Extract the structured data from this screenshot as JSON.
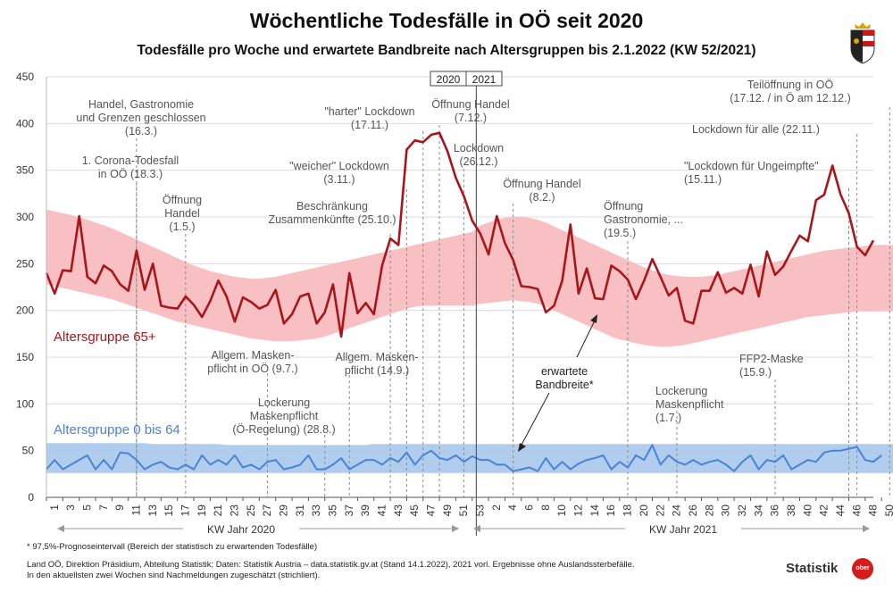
{
  "header": {
    "title": "Wöchentliche Todesfälle in OÖ seit 2020",
    "subtitle": "Todesfälle pro Woche und erwartete Bandbreite nach Altersgruppen bis 2.1.2022 (KW 52/2021)"
  },
  "chart_data": {
    "type": "line",
    "title": "Wöchentliche Todesfälle in OÖ seit 2020",
    "ylim": [
      0,
      450
    ],
    "yticks": [
      0,
      50,
      100,
      150,
      200,
      250,
      300,
      350,
      400,
      450
    ],
    "x_weeks_2020": [
      1,
      2,
      3,
      4,
      5,
      6,
      7,
      8,
      9,
      10,
      11,
      12,
      13,
      14,
      15,
      16,
      17,
      18,
      19,
      20,
      21,
      22,
      23,
      24,
      25,
      26,
      27,
      28,
      29,
      30,
      31,
      32,
      33,
      34,
      35,
      36,
      37,
      38,
      39,
      40,
      41,
      42,
      43,
      44,
      45,
      46,
      47,
      48,
      49,
      50,
      51,
      52,
      53
    ],
    "x_weeks_2021": [
      1,
      2,
      3,
      4,
      5,
      6,
      7,
      8,
      9,
      10,
      11,
      12,
      13,
      14,
      15,
      16,
      17,
      18,
      19,
      20,
      21,
      22,
      23,
      24,
      25,
      26,
      27,
      28,
      29,
      30,
      31,
      32,
      33,
      34,
      35,
      36,
      37,
      38,
      39,
      40,
      41,
      42,
      43,
      44,
      45,
      46,
      47,
      48,
      49,
      50,
      51,
      52
    ],
    "xtick_labels": [
      "1",
      "3",
      "5",
      "7",
      "9",
      "11",
      "13",
      "15",
      "17",
      "19",
      "21",
      "23",
      "25",
      "27",
      "29",
      "31",
      "33",
      "35",
      "37",
      "39",
      "41",
      "43",
      "45",
      "47",
      "49",
      "51",
      "53",
      "2",
      "4",
      "6",
      "8",
      "10",
      "12",
      "14",
      "16",
      "18",
      "20",
      "22",
      "24",
      "26",
      "28",
      "30",
      "32",
      "34",
      "36",
      "38",
      "40",
      "42",
      "44",
      "46",
      "48",
      "50",
      "52"
    ],
    "year_boxes": [
      "2020",
      "2021"
    ],
    "xlabel_2020": "KW Jahr 2020",
    "xlabel_2021": "KW Jahr 2021",
    "series": [
      {
        "name": "Altersgruppe 65+",
        "color": "#a8161b",
        "band_color": "#f8b9bd",
        "band_lower": [
          228,
          226,
          224,
          222,
          220,
          218,
          216,
          214,
          212,
          209,
          206,
          203,
          200,
          197,
          194,
          191,
          188,
          186,
          184,
          182,
          180,
          178,
          176,
          174,
          172,
          170,
          169,
          168,
          167,
          167,
          167,
          168,
          169,
          170,
          172,
          175,
          178,
          181,
          184,
          187,
          190,
          193,
          196,
          199,
          202,
          204,
          205,
          205,
          205,
          205,
          205,
          205,
          205,
          207,
          208,
          209,
          210,
          211,
          210,
          209,
          207,
          204,
          200,
          196,
          192,
          188,
          184,
          180,
          176,
          172,
          169,
          167,
          165,
          163,
          162,
          161,
          161,
          162,
          163,
          165,
          167,
          169,
          171,
          173,
          175,
          177,
          179,
          181,
          183,
          185,
          187,
          189,
          191,
          193,
          194,
          195,
          196,
          197,
          198,
          199,
          199,
          199,
          199,
          199,
          199
        ],
        "band_upper": [
          308,
          306,
          304,
          302,
          300,
          297,
          294,
          291,
          288,
          284,
          280,
          276,
          272,
          268,
          264,
          260,
          256,
          252,
          248,
          245,
          242,
          240,
          238,
          236,
          235,
          234,
          234,
          235,
          236,
          238,
          240,
          242,
          244,
          246,
          248,
          250,
          252,
          254,
          256,
          258,
          260,
          262,
          264,
          266,
          268,
          270,
          272,
          274,
          276,
          278,
          280,
          282,
          284,
          291,
          294,
          297,
          299,
          300,
          300,
          299,
          297,
          294,
          290,
          286,
          282,
          278,
          274,
          270,
          266,
          262,
          258,
          254,
          250,
          246,
          243,
          240,
          238,
          237,
          236,
          236,
          236,
          237,
          238,
          240,
          242,
          244,
          246,
          248,
          250,
          252,
          254,
          256,
          258,
          260,
          262,
          264,
          265,
          266,
          267,
          268,
          269,
          270,
          270,
          270,
          270
        ],
        "values": [
          240,
          218,
          243,
          242,
          301,
          236,
          229,
          248,
          242,
          228,
          221,
          264,
          222,
          250,
          205,
          203,
          202,
          215,
          206,
          193,
          210,
          232,
          215,
          188,
          214,
          209,
          202,
          206,
          222,
          186,
          196,
          215,
          218,
          186,
          198,
          228,
          172,
          240,
          197,
          208,
          196,
          248,
          277,
          270,
          372,
          382,
          380,
          388,
          390,
          370,
          342,
          322,
          296,
          282,
          260,
          301,
          272,
          254,
          226,
          225,
          223,
          198,
          205,
          232,
          292,
          218,
          245,
          213,
          212,
          248,
          242,
          233,
          212,
          232,
          255,
          236,
          216,
          224,
          189,
          186,
          221,
          221,
          241,
          219,
          224,
          218,
          249,
          215,
          263,
          238,
          247,
          264,
          280,
          274,
          318,
          324,
          355,
          324,
          304,
          268,
          259,
          275
        ],
        "estimated_from_index": 103
      },
      {
        "name": "Altersgruppe 0 bis 64",
        "color": "#4a82d6",
        "band_color": "#a9c8ec",
        "band_lower": [
          26,
          26,
          26,
          26,
          26,
          26,
          26,
          26,
          26,
          26,
          26,
          26,
          26,
          26,
          26,
          26,
          26,
          26,
          26,
          26,
          26,
          26,
          26,
          26,
          26,
          26,
          26,
          26,
          26,
          26,
          26,
          26,
          26,
          26,
          26,
          26,
          26,
          26,
          26,
          26,
          26,
          26,
          26,
          26,
          26,
          26,
          26,
          26,
          26,
          26,
          26,
          26,
          26,
          26,
          26,
          26,
          26,
          26,
          26,
          26,
          26,
          26,
          26,
          26,
          26,
          26,
          26,
          26,
          26,
          26,
          26,
          26,
          26,
          26,
          26,
          26,
          26,
          26,
          26,
          26,
          26,
          26,
          26,
          26,
          26,
          26,
          26,
          26,
          26,
          26,
          26,
          26,
          26,
          26,
          26,
          26,
          26,
          26,
          26,
          26,
          26,
          26,
          26,
          26,
          26
        ],
        "band_upper": [
          58,
          58,
          58,
          58,
          58,
          58,
          58,
          58,
          58,
          58,
          58,
          58,
          58,
          57,
          57,
          57,
          57,
          57,
          57,
          57,
          57,
          57,
          56,
          56,
          56,
          56,
          56,
          56,
          56,
          56,
          56,
          56,
          56,
          56,
          56,
          56,
          56,
          56,
          56,
          56,
          57,
          57,
          57,
          57,
          57,
          57,
          57,
          57,
          57,
          57,
          57,
          57,
          57,
          57,
          57,
          57,
          57,
          57,
          57,
          57,
          57,
          57,
          57,
          57,
          57,
          57,
          57,
          57,
          57,
          57,
          57,
          57,
          57,
          57,
          57,
          57,
          57,
          57,
          57,
          57,
          57,
          57,
          57,
          57,
          57,
          57,
          57,
          57,
          57,
          57,
          57,
          57,
          57,
          57,
          57,
          57,
          57,
          57,
          57,
          57,
          57,
          57,
          57,
          57,
          57
        ],
        "values": [
          30,
          40,
          30,
          35,
          40,
          45,
          30,
          40,
          30,
          48,
          47,
          40,
          30,
          35,
          38,
          32,
          30,
          35,
          30,
          45,
          35,
          40,
          35,
          45,
          32,
          35,
          30,
          38,
          40,
          30,
          32,
          35,
          45,
          30,
          30,
          35,
          42,
          30,
          35,
          40,
          40,
          35,
          42,
          38,
          48,
          35,
          45,
          50,
          42,
          40,
          45,
          38,
          44,
          40,
          40,
          35,
          35,
          28,
          30,
          32,
          28,
          42,
          30,
          38,
          30,
          36,
          40,
          42,
          45,
          30,
          38,
          32,
          45,
          40,
          56,
          35,
          45,
          38,
          35,
          40,
          35,
          38,
          40,
          35,
          28,
          38,
          45,
          30,
          40,
          38,
          45,
          30,
          35,
          40,
          38,
          48,
          50,
          50,
          52,
          54,
          40,
          38,
          45
        ],
        "estimated_from_index": 103
      }
    ],
    "legend": [
      "Altersgruppe 65+",
      "Altersgruppe 0 bis 64"
    ],
    "band_label": "erwartete\nBandbreite*"
  },
  "annotations": [
    {
      "lines": [
        "Handel, Gastronomie",
        "und Grenzen geschlossen",
        "(16.3.)"
      ]
    },
    {
      "lines": [
        "1. Corona-Todesfall",
        "in OÖ (18.3.)"
      ]
    },
    {
      "lines": [
        "Öffnung",
        "Handel",
        "(1.5.)"
      ]
    },
    {
      "lines": [
        "Allgem. Masken-",
        "pflicht in OÖ (9.7.)"
      ]
    },
    {
      "lines": [
        "Lockerung",
        "Maskenpflicht",
        "(Ö-Regelung) (28.8.)"
      ]
    },
    {
      "lines": [
        "Allgem. Masken-",
        "pflicht (14.9.)"
      ]
    },
    {
      "lines": [
        "Beschränkung",
        "Zusammenkünfte (25.10.)"
      ]
    },
    {
      "lines": [
        "\"weicher\" Lockdown",
        "(3.11.)"
      ]
    },
    {
      "lines": [
        "\"harter\" Lockdown",
        "(17.11.)"
      ]
    },
    {
      "lines": [
        "Öffnung Handel",
        "(7.12.)"
      ]
    },
    {
      "lines": [
        "Lockdown",
        "(26.12.)"
      ]
    },
    {
      "lines": [
        "Öffnung Handel",
        "(8.2.)"
      ]
    },
    {
      "lines": [
        "Öffnung",
        "Gastronomie, ...",
        "(19.5.)"
      ]
    },
    {
      "lines": [
        "Lockerung",
        "Maskenpflicht",
        "(1.7.)"
      ]
    },
    {
      "lines": [
        "FFP2-Maske",
        "(15.9.)"
      ]
    },
    {
      "lines": [
        "\"Lockdown für Ungeimpfte\"",
        "(15.11.)"
      ]
    },
    {
      "lines": [
        "Lockdown für alle (22.11.)"
      ]
    },
    {
      "lines": [
        "Teilöffnung in OÖ",
        "(17.12. / in Ö am 12.12.)"
      ]
    }
  ],
  "footer": {
    "footnote": "* 97,5%-Prognoseintervall (Bereich der statistisch zu erwartenden Todesfälle)",
    "source_line1": "Land OÖ, Direktion Präsidium, Abteilung Statistik; Daten: Statistik Austria – data.statistik.gv.at (Stand 14.1.2022), 2021 vorl. Ergebnisse ohne Auslandssterbefälle.",
    "source_line2": "In den aktuellsten zwei Wochen sind Nachmeldungen zugeschätzt (strichliert).",
    "brand": "Statistik",
    "brand_logo_text": "ober"
  }
}
